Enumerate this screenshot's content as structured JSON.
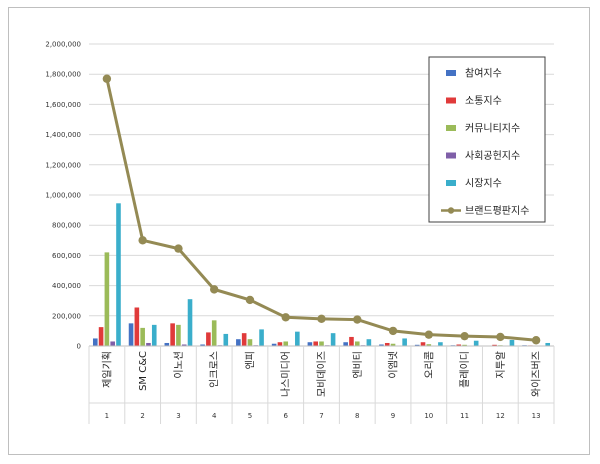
{
  "chart_data": {
    "type": "bar",
    "title": "",
    "xlabel": "",
    "ylabel": "",
    "ylim": [
      0,
      2000000
    ],
    "yticks": [
      0,
      200000,
      400000,
      600000,
      800000,
      1000000,
      1200000,
      1400000,
      1600000,
      1800000,
      2000000
    ],
    "ytick_labels": [
      "0",
      "200,000",
      "400,000",
      "600,000",
      "800,000",
      "1,000,000",
      "1,200,000",
      "1,400,000",
      "1,600,000",
      "1,800,000",
      "2,000,000"
    ],
    "grid": true,
    "legend_position": "top-right",
    "categories": [
      "제일기획",
      "SM C&C",
      "이노션",
      "인크로스",
      "엔피",
      "나스미디어",
      "모비데이즈",
      "엔비티",
      "이엠넷",
      "오리콤",
      "플레이디",
      "지투알",
      "와이즈버즈"
    ],
    "category_index": [
      "1",
      "2",
      "3",
      "4",
      "5",
      "6",
      "7",
      "8",
      "9",
      "10",
      "11",
      "12",
      "13"
    ],
    "series": [
      {
        "name": "참여지수",
        "type": "bar",
        "color": "#4472c4",
        "values": [
          50000,
          150000,
          20000,
          10000,
          45000,
          15000,
          25000,
          25000,
          10000,
          8000,
          5000,
          3000,
          5000
        ]
      },
      {
        "name": "소통지수",
        "type": "bar",
        "color": "#e03a3a",
        "values": [
          125000,
          255000,
          150000,
          90000,
          85000,
          25000,
          30000,
          60000,
          20000,
          25000,
          10000,
          8000,
          4000
        ]
      },
      {
        "name": "커뮤니티지수",
        "type": "bar",
        "color": "#9bbb59",
        "values": [
          620000,
          120000,
          140000,
          170000,
          45000,
          30000,
          30000,
          30000,
          15000,
          12000,
          8000,
          5000,
          3000
        ]
      },
      {
        "name": "사회공헌지수",
        "type": "bar",
        "color": "#7f5fa8",
        "values": [
          30000,
          20000,
          10000,
          5000,
          5000,
          3000,
          5000,
          5000,
          3000,
          3000,
          2000,
          2000,
          2000
        ]
      },
      {
        "name": "시장지수",
        "type": "bar",
        "color": "#3aaecb",
        "values": [
          945000,
          140000,
          310000,
          80000,
          110000,
          95000,
          85000,
          45000,
          50000,
          25000,
          35000,
          40000,
          20000
        ]
      },
      {
        "name": "브랜드평판지수",
        "type": "line",
        "color": "#948a54",
        "values": [
          1770000,
          700000,
          645000,
          375000,
          305000,
          190000,
          180000,
          175000,
          100000,
          75000,
          65000,
          60000,
          38000
        ]
      }
    ]
  }
}
